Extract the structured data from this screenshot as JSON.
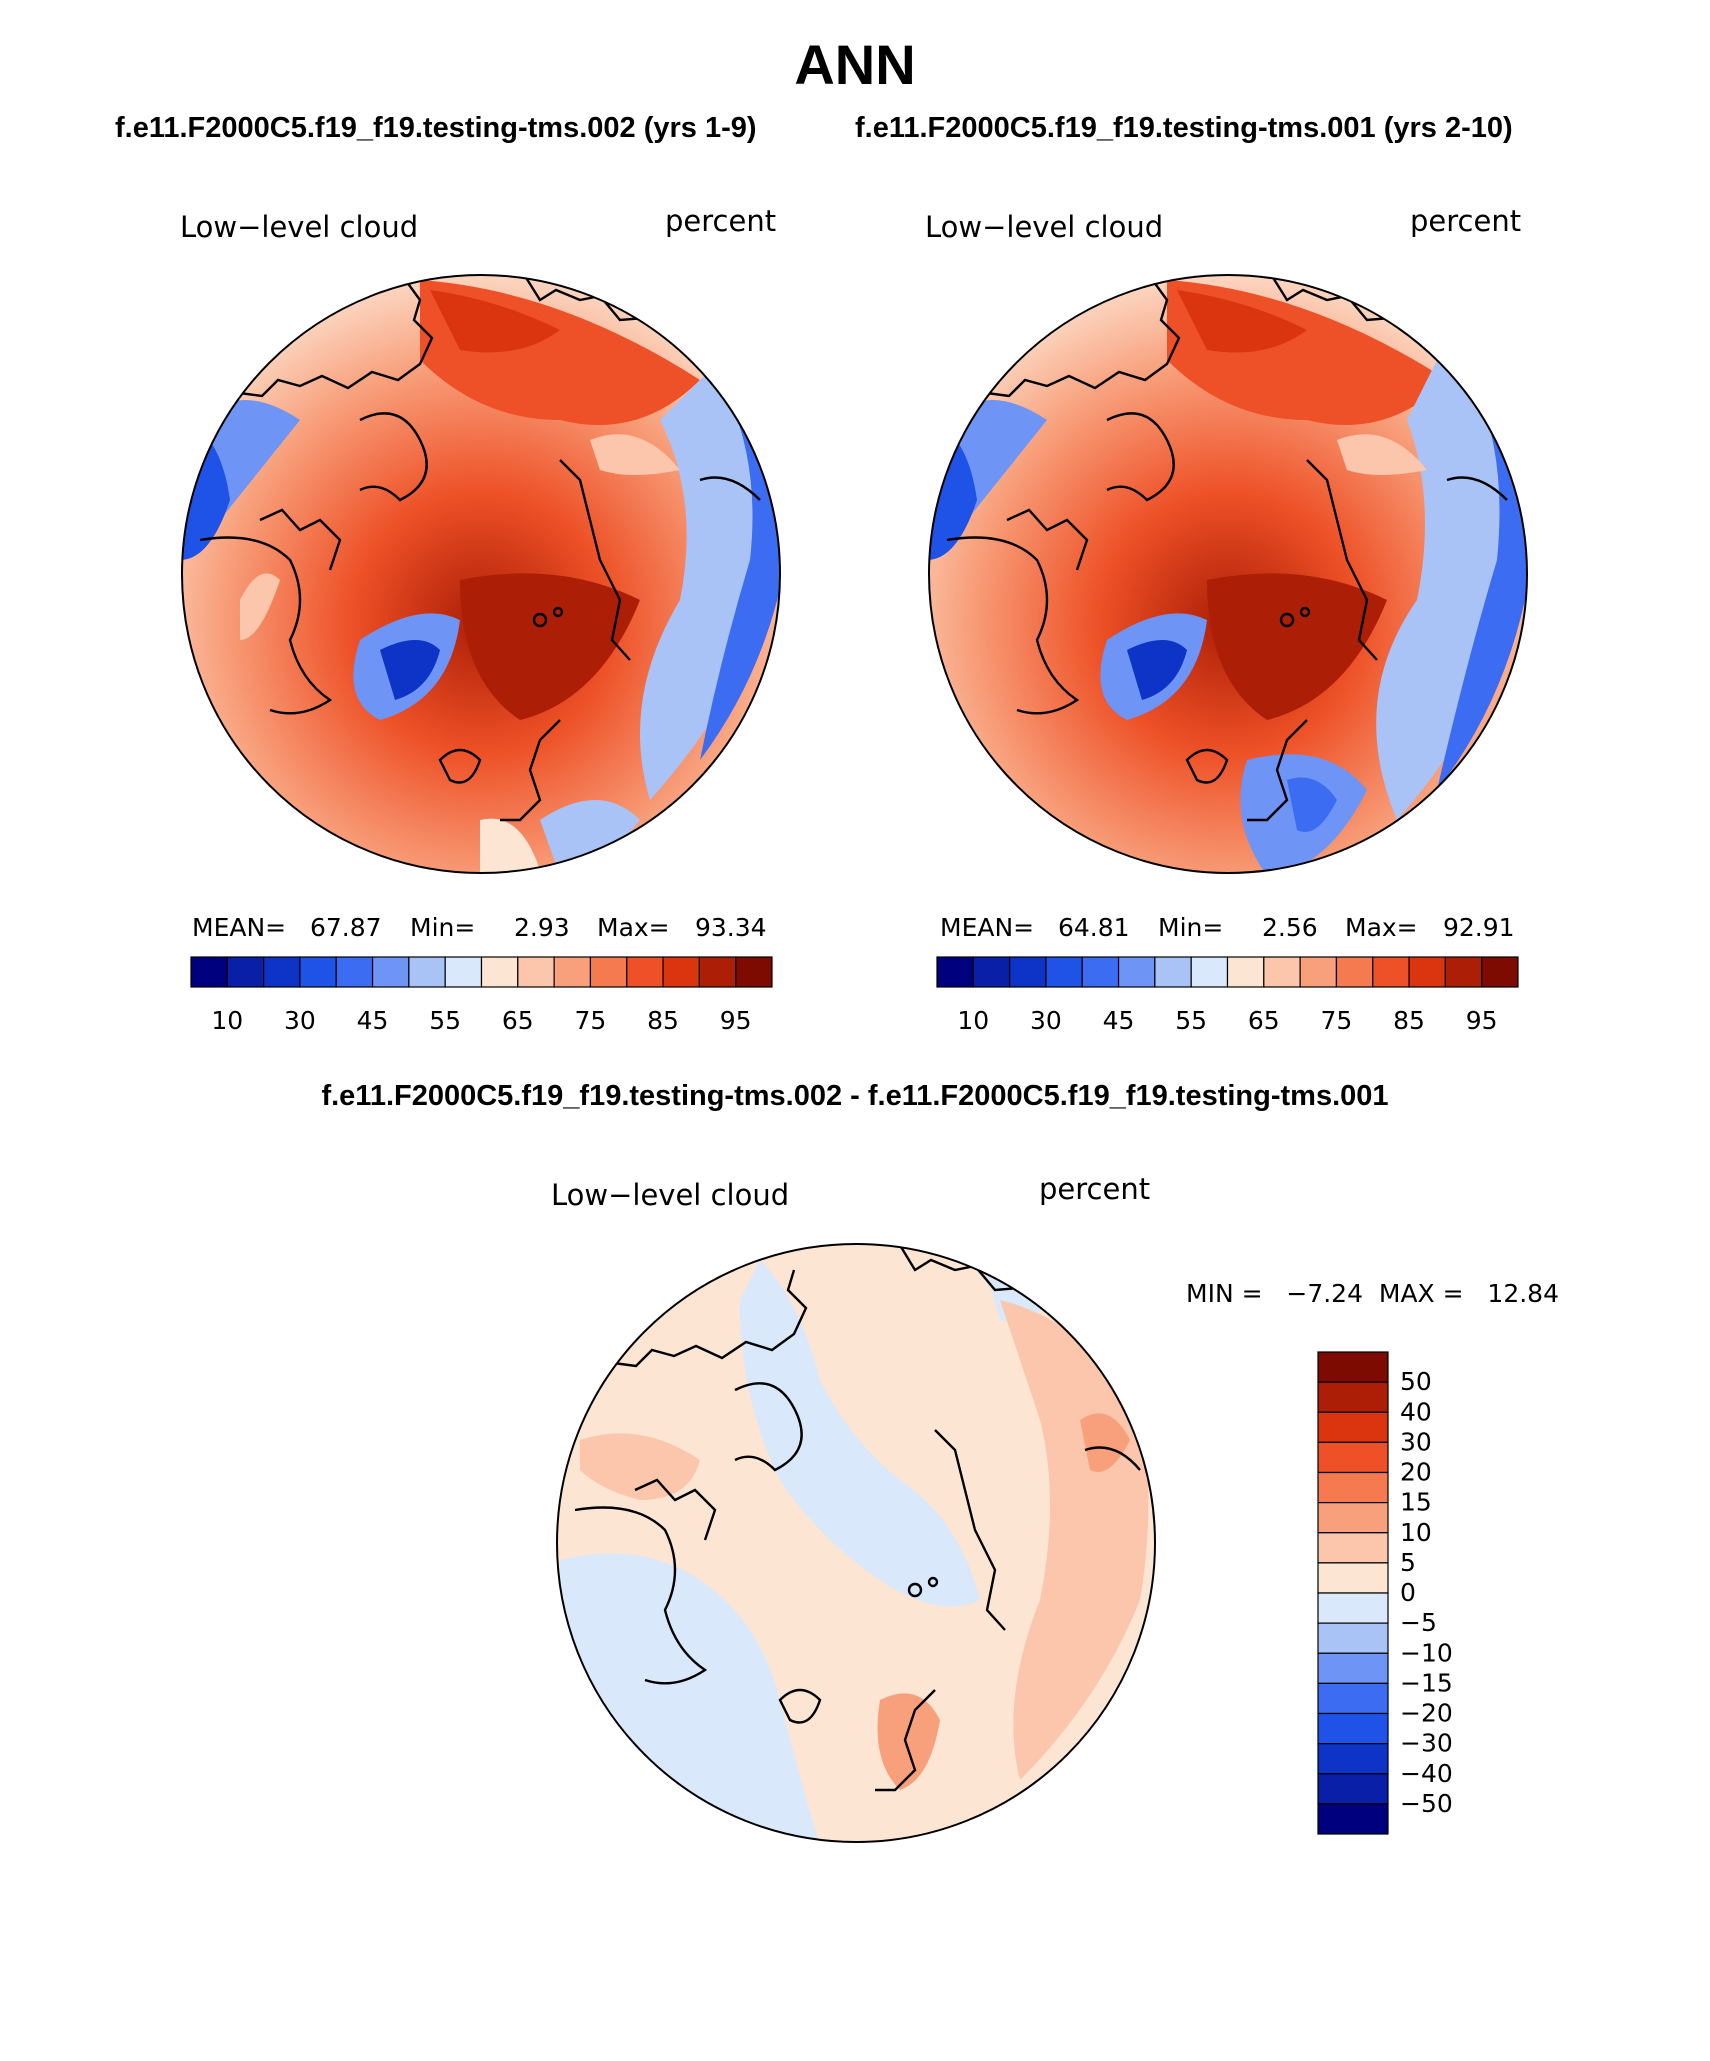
{
  "title": "ANN",
  "case_names": {
    "left": "f.e11.F2000C5.f19_f19.testing-tms.002 (yrs 1-9)",
    "right": "f.e11.F2000C5.f19_f19.testing-tms.001 (yrs 2-10)",
    "difference": "f.e11.F2000C5.f19_f19.testing-tms.002 - f.e11.F2000C5.f19_f19.testing-tms.001"
  },
  "panels": {
    "left": {
      "variable": "Low−level cloud",
      "units": "percent",
      "stats": {
        "mean_label": "MEAN=",
        "mean": "67.87",
        "min_label": "Min=",
        "min": "2.93",
        "max_label": "Max=",
        "max": "93.34"
      }
    },
    "right": {
      "variable": "Low−level cloud",
      "units": "percent",
      "stats": {
        "mean_label": "MEAN=",
        "mean": "64.81",
        "min_label": "Min=",
        "min": "2.56",
        "max_label": "Max=",
        "max": "92.91"
      }
    },
    "difference": {
      "variable": "Low−level cloud",
      "units": "percent",
      "stats_text": "MIN =   −7.24  MAX =   12.84"
    }
  },
  "colorbars": {
    "absolute": {
      "colors": [
        "#00007f",
        "#0a1fa8",
        "#0d33c7",
        "#1f52e6",
        "#3b6cf2",
        "#6e94f5",
        "#a9c3f7",
        "#d9e8fb",
        "#fde5d4",
        "#fbc6ab",
        "#f8a07c",
        "#f57a4f",
        "#ee5127",
        "#db3510",
        "#ad1e06",
        "#7d0b01"
      ],
      "ticks": [
        "10",
        "30",
        "45",
        "55",
        "65",
        "75",
        "85",
        "95"
      ]
    },
    "difference": {
      "colors": [
        "#7d0b01",
        "#ad1e06",
        "#db3510",
        "#ee5127",
        "#f57a4f",
        "#f8a07c",
        "#fbc6ab",
        "#fde5d4",
        "#d9e8fb",
        "#a9c3f7",
        "#6e94f5",
        "#3b6cf2",
        "#1f52e6",
        "#0d33c7",
        "#0a1fa8",
        "#00007f"
      ],
      "ticks": [
        "50",
        "40",
        "30",
        "20",
        "15",
        "10",
        "5",
        "0",
        "−5",
        "−10",
        "−15",
        "−20",
        "−30",
        "−40",
        "−50"
      ]
    }
  }
}
